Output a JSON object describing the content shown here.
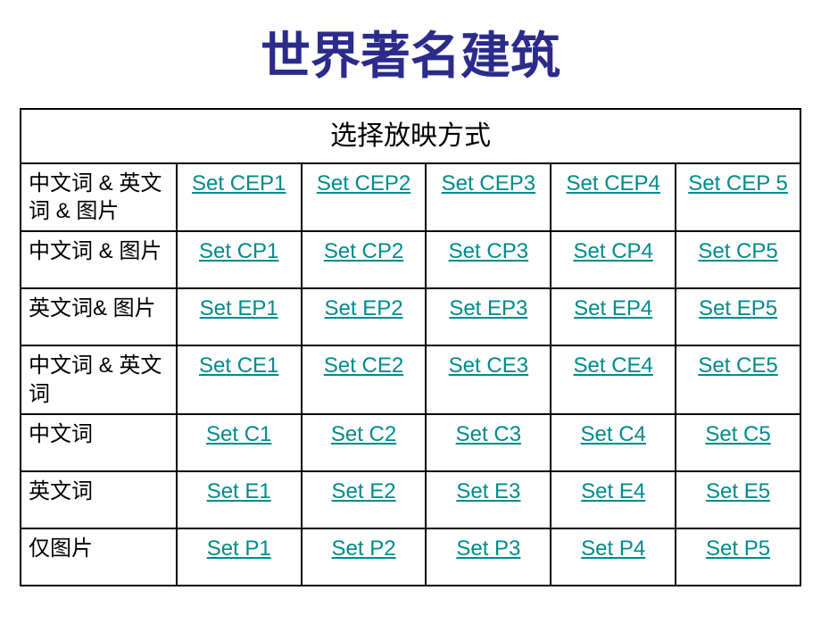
{
  "title": "世界著名建筑",
  "title_color": "#2b2b8c",
  "subheader": "选择放映方式",
  "link_color": "#008b8b",
  "border_color": "#000000",
  "label_color": "#000000",
  "background_color": "#ffffff",
  "table": {
    "columns_count": 5,
    "rows": [
      {
        "label": "中文词 & 英文词 & 图片",
        "cells": [
          "Set CEP1",
          "Set CEP2",
          "Set CEP3",
          "Set CEP4",
          "Set CEP 5"
        ]
      },
      {
        "label": "中文词 & 图片",
        "cells": [
          "Set CP1",
          "Set CP2",
          "Set CP3",
          "Set CP4",
          "Set CP5"
        ]
      },
      {
        "label": "英文词& 图片",
        "cells": [
          "Set EP1",
          "Set EP2",
          "Set EP3",
          "Set EP4",
          "Set EP5"
        ]
      },
      {
        "label": "中文词 & 英文词",
        "cells": [
          "Set CE1",
          "Set CE2",
          "Set CE3",
          "Set CE4",
          "Set CE5"
        ]
      },
      {
        "label": "中文词",
        "cells": [
          "Set C1",
          "Set C2",
          "Set C3",
          "Set C4",
          "Set C5"
        ]
      },
      {
        "label": "英文词",
        "cells": [
          "Set E1",
          "Set E2",
          "Set E3",
          "Set E4",
          "Set E5"
        ]
      },
      {
        "label": "仅图片",
        "cells": [
          "Set P1",
          "Set P2",
          "Set P3",
          "Set P4",
          "Set P5"
        ]
      }
    ]
  }
}
